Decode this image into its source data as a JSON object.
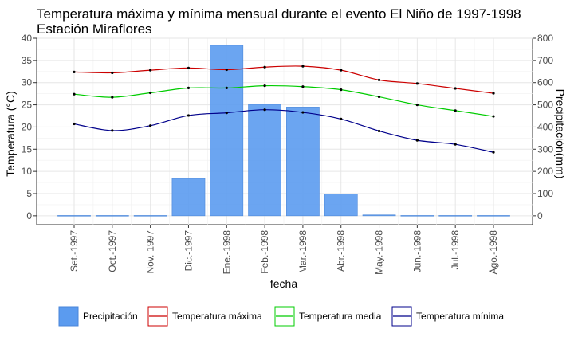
{
  "chart_data": {
    "type": "bar+line",
    "title": "Temperatura máxima y mínima mensual durante el evento El Niño de 1997-1998",
    "subtitle": "Estación Miraflores",
    "xlabel": "fecha",
    "ylabel_left": "Temperatura (°C)",
    "ylabel_right": "Precipitación(mm)",
    "ylim_left": [
      -2,
      40
    ],
    "ylim_right": [
      -40,
      800
    ],
    "yticks_left": [
      0,
      5,
      10,
      15,
      20,
      25,
      30,
      35,
      40
    ],
    "yticks_right": [
      0,
      100,
      200,
      300,
      400,
      500,
      600,
      700,
      800
    ],
    "grid": true,
    "legend_position": "bottom",
    "categories": [
      "Set.-1997",
      "Oct.-1997",
      "Nov.-1997",
      "Dic.-1997",
      "Ene.-1998",
      "Feb.-1998",
      "Mar.-1998",
      "Abr.-1998",
      "May.-1998",
      "Jun.-1998",
      "Jul.-1998",
      "Ago.-1998"
    ],
    "bars": {
      "name": "Precipitación",
      "color": "#5b9bef",
      "axis": "right",
      "values": [
        0,
        0,
        0,
        168,
        768,
        502,
        490,
        98,
        4,
        0,
        0,
        0
      ]
    },
    "series": [
      {
        "name": "Temperatura máxima",
        "color": "#cc0000",
        "axis": "left",
        "values": [
          32.4,
          32.2,
          32.8,
          33.3,
          32.9,
          33.5,
          33.7,
          32.8,
          30.6,
          29.8,
          28.7,
          27.6
        ]
      },
      {
        "name": "Temperatura media",
        "color": "#00cc00",
        "axis": "left",
        "values": [
          27.4,
          26.7,
          27.7,
          28.8,
          28.8,
          29.3,
          29.1,
          28.4,
          26.8,
          25.0,
          23.7,
          22.4
        ]
      },
      {
        "name": "Temperatura mínima",
        "color": "#00008b",
        "axis": "left",
        "values": [
          20.7,
          19.2,
          20.3,
          22.6,
          23.2,
          23.9,
          23.3,
          21.8,
          19.1,
          17.0,
          16.1,
          14.3
        ]
      }
    ]
  }
}
